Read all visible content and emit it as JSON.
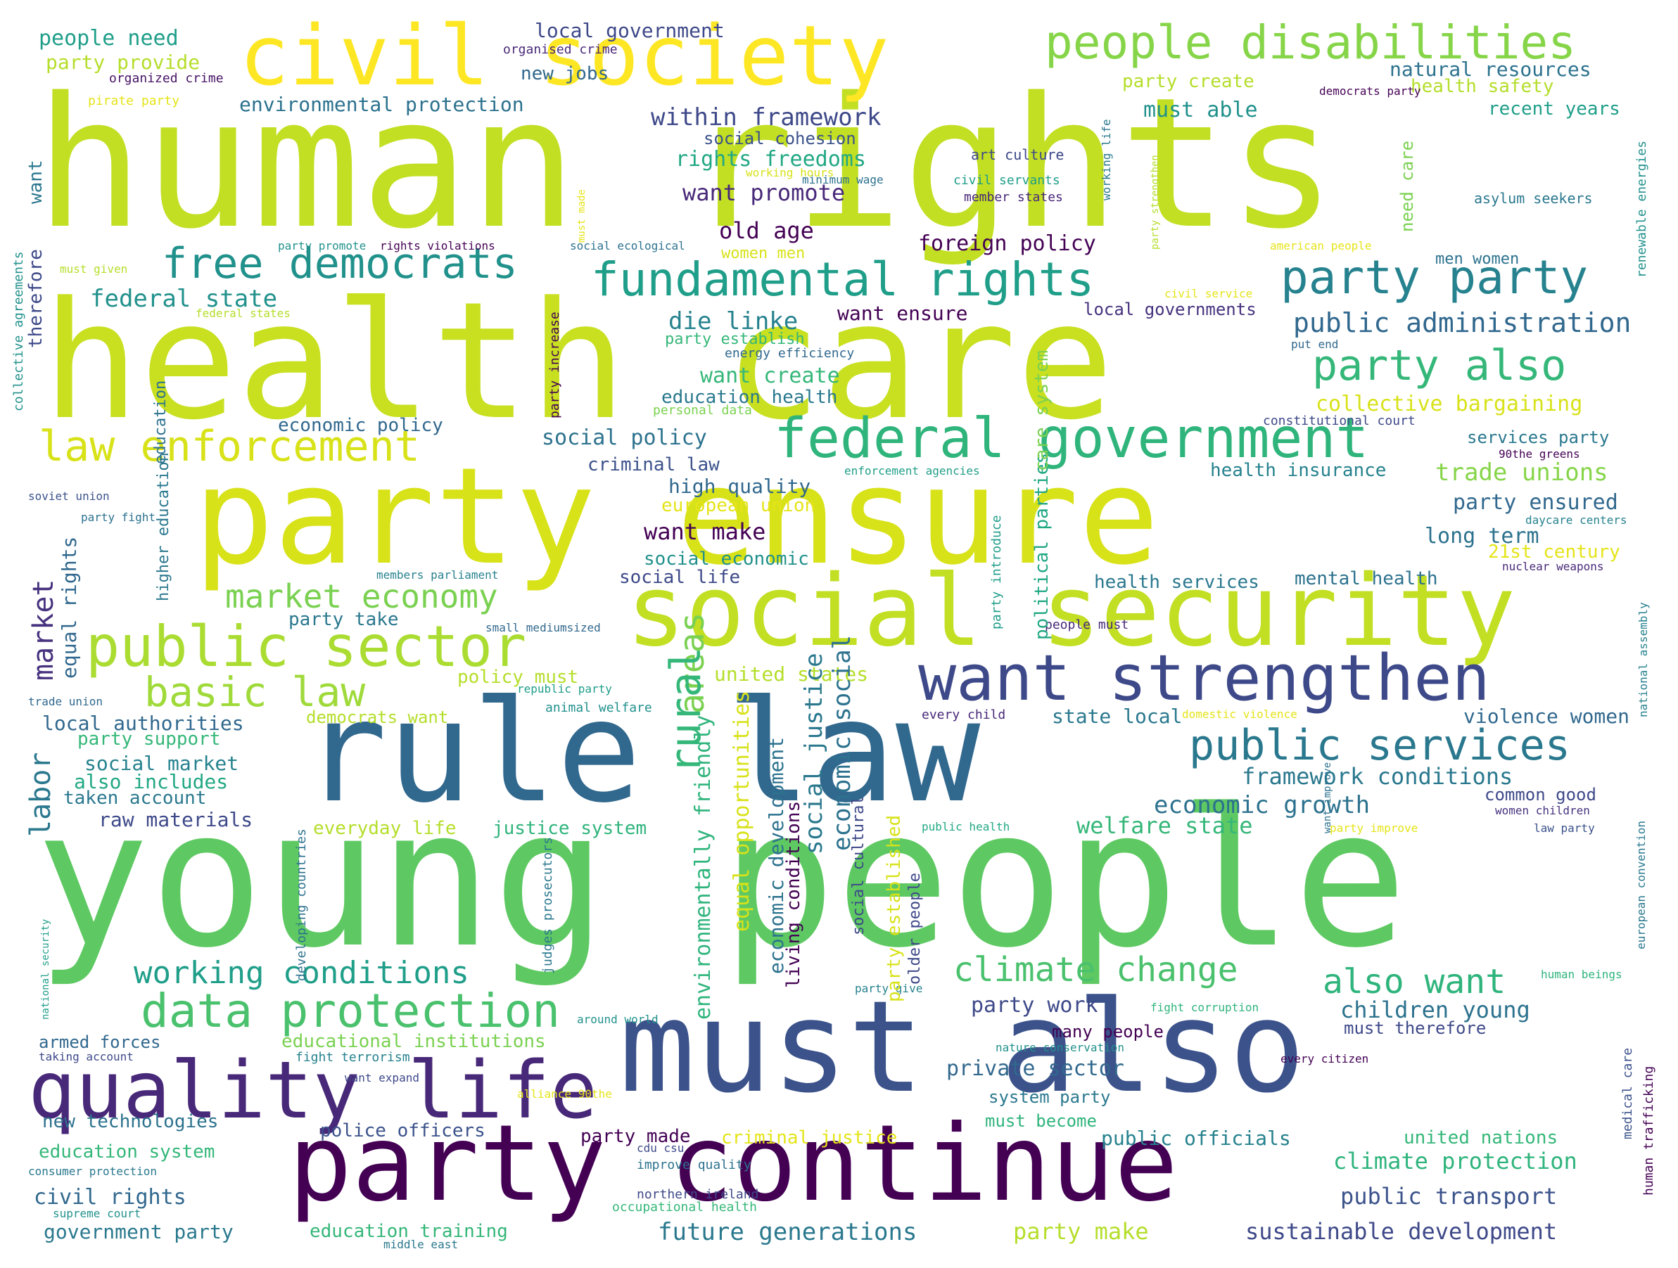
{
  "words": [
    {
      "text": "human rights",
      "color": "#c2df23"
    },
    {
      "text": "health care",
      "color": "#c8e020"
    },
    {
      "text": "young people",
      "color": "#5ec962"
    },
    {
      "text": "rule law",
      "color": "#31688e"
    },
    {
      "text": "party ensure",
      "color": "#d8e219"
    },
    {
      "text": "must also",
      "color": "#3b528b"
    },
    {
      "text": "social security",
      "color": "#c2df23"
    },
    {
      "text": "party continue",
      "color": "#440154"
    },
    {
      "text": "civil society",
      "color": "#fde725"
    },
    {
      "text": "people disabilities",
      "color": "#86d549"
    },
    {
      "text": "quality life",
      "color": "#482878"
    },
    {
      "text": "want strengthen",
      "color": "#3e4989"
    },
    {
      "text": "public sector",
      "color": "#aadc32"
    },
    {
      "text": "data protection",
      "color": "#4ac16d"
    },
    {
      "text": "federal government",
      "color": "#2fb47c"
    },
    {
      "text": "fundamental rights",
      "color": "#1f9e89"
    },
    {
      "text": "free democrats",
      "color": "#21918c"
    },
    {
      "text": "law enforcement",
      "color": "#d8e219"
    },
    {
      "text": "party party",
      "color": "#26828e"
    },
    {
      "text": "party also",
      "color": "#35b779"
    },
    {
      "text": "public services",
      "color": "#2a788e"
    },
    {
      "text": "climate change",
      "color": "#4ac16d"
    },
    {
      "text": "also want",
      "color": "#2fb47c"
    },
    {
      "text": "working conditions",
      "color": "#1f9e89"
    },
    {
      "text": "market economy",
      "color": "#7ad151"
    },
    {
      "text": "basic law",
      "color": "#9fda3a"
    },
    {
      "text": "public administration",
      "color": "#31688e"
    },
    {
      "text": "within framework",
      "color": "#3e4989"
    },
    {
      "text": "environmental protection",
      "color": "#2c728e"
    },
    {
      "text": "people need",
      "color": "#1f9e89"
    },
    {
      "text": "party provide",
      "color": "#b5de2b"
    },
    {
      "text": "local government",
      "color": "#3e4989"
    },
    {
      "text": "new jobs",
      "color": "#31688e"
    },
    {
      "text": "organised crime",
      "color": "#482878"
    },
    {
      "text": "organized crime",
      "color": "#471365"
    },
    {
      "text": "pirate party",
      "color": "#e5e419"
    },
    {
      "text": "natural resources",
      "color": "#2c728e"
    },
    {
      "text": "health safety",
      "color": "#b5de2b"
    },
    {
      "text": "party create",
      "color": "#b5de2b"
    },
    {
      "text": "must able",
      "color": "#21918c"
    },
    {
      "text": "recent years",
      "color": "#1f9e89"
    },
    {
      "text": "social cohesion",
      "color": "#3b528b"
    },
    {
      "text": "rights freedoms",
      "color": "#22a884"
    },
    {
      "text": "want promote",
      "color": "#482878"
    },
    {
      "text": "old age",
      "color": "#440154"
    },
    {
      "text": "foreign policy",
      "color": "#440154"
    },
    {
      "text": "women men",
      "color": "#d8e219"
    },
    {
      "text": "men women",
      "color": "#2c728e"
    },
    {
      "text": "asylum seekers",
      "color": "#2a788e"
    },
    {
      "text": "civil servants",
      "color": "#1f9e89"
    },
    {
      "text": "art culture",
      "color": "#3e4989"
    },
    {
      "text": "member states",
      "color": "#482878"
    },
    {
      "text": "minimum wage",
      "color": "#2c728e"
    },
    {
      "text": "working hours",
      "color": "#d8e219"
    },
    {
      "text": "federal state",
      "color": "#21918c"
    },
    {
      "text": "federal states",
      "color": "#b5de2b"
    },
    {
      "text": "die linke",
      "color": "#26828e"
    },
    {
      "text": "want ensure",
      "color": "#440154"
    },
    {
      "text": "local governments",
      "color": "#46327e"
    },
    {
      "text": "party establish",
      "color": "#35b779"
    },
    {
      "text": "energy efficiency",
      "color": "#31688e"
    },
    {
      "text": "want create",
      "color": "#35b779"
    },
    {
      "text": "education health",
      "color": "#2a788e"
    },
    {
      "text": "personal data",
      "color": "#7ad151"
    },
    {
      "text": "collective bargaining",
      "color": "#d8e219"
    },
    {
      "text": "constitutional court",
      "color": "#3e4989"
    },
    {
      "text": "economic policy",
      "color": "#31688e"
    },
    {
      "text": "social policy",
      "color": "#2c728e"
    },
    {
      "text": "criminal law",
      "color": "#3b528b"
    },
    {
      "text": "high quality",
      "color": "#31688e"
    },
    {
      "text": "european union",
      "color": "#e5e419"
    },
    {
      "text": "want make",
      "color": "#440154"
    },
    {
      "text": "social economic",
      "color": "#21918c"
    },
    {
      "text": "social life",
      "color": "#3e4989"
    },
    {
      "text": "services party",
      "color": "#2a788e"
    },
    {
      "text": "health insurance",
      "color": "#26828e"
    },
    {
      "text": "trade unions",
      "color": "#86d549"
    },
    {
      "text": "party ensured",
      "color": "#31688e"
    },
    {
      "text": "long term",
      "color": "#2c728e"
    },
    {
      "text": "21st century",
      "color": "#e5e419"
    },
    {
      "text": "daycare centers",
      "color": "#26828e"
    },
    {
      "text": "nuclear weapons",
      "color": "#482878"
    },
    {
      "text": "health services",
      "color": "#2a788e"
    },
    {
      "text": "mental health",
      "color": "#2c728e"
    },
    {
      "text": "soviet union",
      "color": "#3b528b"
    },
    {
      "text": "party fight",
      "color": "#2c728e"
    },
    {
      "text": "members parliament",
      "color": "#26828e"
    },
    {
      "text": "small mediumsized",
      "color": "#31688e"
    },
    {
      "text": "people must",
      "color": "#482878"
    },
    {
      "text": "party take",
      "color": "#2a788e"
    },
    {
      "text": "policy must",
      "color": "#b5de2b"
    },
    {
      "text": "republic party",
      "color": "#1f9e89"
    },
    {
      "text": "animal welfare",
      "color": "#21918c"
    },
    {
      "text": "united states",
      "color": "#b5de2b"
    },
    {
      "text": "every child",
      "color": "#482878"
    },
    {
      "text": "state local",
      "color": "#2a788e"
    },
    {
      "text": "domestic violence",
      "color": "#e5e419"
    },
    {
      "text": "violence women",
      "color": "#31688e"
    },
    {
      "text": "framework conditions",
      "color": "#2a788e"
    },
    {
      "text": "common good",
      "color": "#3e4989"
    },
    {
      "text": "women children",
      "color": "#46327e"
    },
    {
      "text": "law party",
      "color": "#3b528b"
    },
    {
      "text": "party improve",
      "color": "#e5e419"
    },
    {
      "text": "public health",
      "color": "#22a884"
    },
    {
      "text": "trade union",
      "color": "#31688e"
    },
    {
      "text": "local authorities",
      "color": "#31688e"
    },
    {
      "text": "party support",
      "color": "#35b779"
    },
    {
      "text": "democrats want",
      "color": "#b5de2b"
    },
    {
      "text": "social market",
      "color": "#26828e"
    },
    {
      "text": "also includes",
      "color": "#22a884"
    },
    {
      "text": "taken account",
      "color": "#2a788e"
    },
    {
      "text": "raw materials",
      "color": "#3e4989"
    },
    {
      "text": "everyday life",
      "color": "#b5de2b"
    },
    {
      "text": "justice system",
      "color": "#2fb47c"
    },
    {
      "text": "economic growth",
      "color": "#2c728e"
    },
    {
      "text": "welfare state",
      "color": "#35b779"
    },
    {
      "text": "party work",
      "color": "#3e4989"
    },
    {
      "text": "children young",
      "color": "#2c728e"
    },
    {
      "text": "must therefore",
      "color": "#3e4989"
    },
    {
      "text": "armed forces",
      "color": "#31688e"
    },
    {
      "text": "educational institutions",
      "color": "#7ad151"
    },
    {
      "text": "taking account",
      "color": "#3e4989"
    },
    {
      "text": "fight terrorism",
      "color": "#26828e"
    },
    {
      "text": "want expand",
      "color": "#3e4989"
    },
    {
      "text": "private sector",
      "color": "#31688e"
    },
    {
      "text": "many people",
      "color": "#440154"
    },
    {
      "text": "around world",
      "color": "#21918c"
    },
    {
      "text": "fight corruption",
      "color": "#2fb47c"
    },
    {
      "text": "nature conservation",
      "color": "#21918c"
    },
    {
      "text": "system party",
      "color": "#2a788e"
    },
    {
      "text": "must become",
      "color": "#2fb47c"
    },
    {
      "text": "alliance 90the",
      "color": "#e5e419"
    },
    {
      "text": "new technologies",
      "color": "#2c728e"
    },
    {
      "text": "police officers",
      "color": "#3b528b"
    },
    {
      "text": "party made",
      "color": "#440154"
    },
    {
      "text": "criminal justice",
      "color": "#e5e419"
    },
    {
      "text": "public officials",
      "color": "#26828e"
    },
    {
      "text": "united nations",
      "color": "#35b779"
    },
    {
      "text": "education system",
      "color": "#35b779"
    },
    {
      "text": "cdu csu",
      "color": "#3e4989"
    },
    {
      "text": "improve quality",
      "color": "#2c728e"
    },
    {
      "text": "climate protection",
      "color": "#2fb47c"
    },
    {
      "text": "consumer protection",
      "color": "#2a788e"
    },
    {
      "text": "civil rights",
      "color": "#31688e"
    },
    {
      "text": "supreme court",
      "color": "#21918c"
    },
    {
      "text": "public transport",
      "color": "#3b528b"
    },
    {
      "text": "northern ireland",
      "color": "#3e4989"
    },
    {
      "text": "occupational health",
      "color": "#35b779"
    },
    {
      "text": "government party",
      "color": "#2a788e"
    },
    {
      "text": "education training",
      "color": "#35b779"
    },
    {
      "text": "middle east",
      "color": "#2a788e"
    },
    {
      "text": "future generations",
      "color": "#2a788e"
    },
    {
      "text": "party make",
      "color": "#b5de2b"
    },
    {
      "text": "sustainable development",
      "color": "#3e4989"
    },
    {
      "text": "democrats party",
      "color": "#440154"
    },
    {
      "text": "party promote",
      "color": "#21918c"
    },
    {
      "text": "rights violations",
      "color": "#440154"
    },
    {
      "text": "social ecological",
      "color": "#2c728e"
    },
    {
      "text": "american people",
      "color": "#e5e419"
    },
    {
      "text": "civil service",
      "color": "#e5e419"
    },
    {
      "text": "put end",
      "color": "#31688e"
    },
    {
      "text": "enforcement agencies",
      "color": "#1f9e89"
    },
    {
      "text": "90the greens",
      "color": "#440154"
    },
    {
      "text": "human beings",
      "color": "#2fb47c"
    },
    {
      "text": "every citizen",
      "color": "#440154"
    },
    {
      "text": "party give",
      "color": "#26828e"
    },
    {
      "text": "must given",
      "color": "#b5de2b"
    },
    {
      "text": "want",
      "color": "#2a788e"
    },
    {
      "text": "therefore",
      "color": "#3e4989"
    },
    {
      "text": "collective agreements",
      "color": "#21918c"
    },
    {
      "text": "market",
      "color": "#46327e"
    },
    {
      "text": "labor",
      "color": "#2a788e"
    },
    {
      "text": "areas",
      "color": "#7ad151"
    },
    {
      "text": "rural",
      "color": "#35b779"
    },
    {
      "text": "equal rights",
      "color": "#31688e"
    },
    {
      "text": "education",
      "color": "#2c728e"
    },
    {
      "text": "higher education",
      "color": "#2a788e"
    },
    {
      "text": "environmentally friendly",
      "color": "#2fb47c"
    },
    {
      "text": "equal opportunities",
      "color": "#d8e219"
    },
    {
      "text": "economic development",
      "color": "#2c728e"
    },
    {
      "text": "social justice",
      "color": "#2a788e"
    },
    {
      "text": "economic social",
      "color": "#2c728e"
    },
    {
      "text": "living conditions",
      "color": "#440154"
    },
    {
      "text": "social cultural",
      "color": "#3e4989"
    },
    {
      "text": "party established",
      "color": "#d8e219"
    },
    {
      "text": "older people",
      "color": "#3e4989"
    },
    {
      "text": "political parties",
      "color": "#22a884"
    },
    {
      "text": "party introduce",
      "color": "#1f9e89"
    },
    {
      "text": "care system",
      "color": "#7ad151"
    },
    {
      "text": "party increase",
      "color": "#440154"
    },
    {
      "text": "must made",
      "color": "#e5e419"
    },
    {
      "text": "working life",
      "color": "#2a788e"
    },
    {
      "text": "party strengthen",
      "color": "#b5de2b"
    },
    {
      "text": "need care",
      "color": "#7ad151"
    },
    {
      "text": "renewable energies",
      "color": "#21918c"
    },
    {
      "text": "national assembly",
      "color": "#26828e"
    },
    {
      "text": "european convention",
      "color": "#2a788e"
    },
    {
      "text": "medical care",
      "color": "#3b528b"
    },
    {
      "text": "human trafficking",
      "color": "#440154"
    },
    {
      "text": "developing countries",
      "color": "#2c728e"
    },
    {
      "text": "judges prosecutors",
      "color": "#2a788e"
    },
    {
      "text": "national security",
      "color": "#1f9e89"
    },
    {
      "text": "want improve",
      "color": "#2c728e"
    }
  ]
}
